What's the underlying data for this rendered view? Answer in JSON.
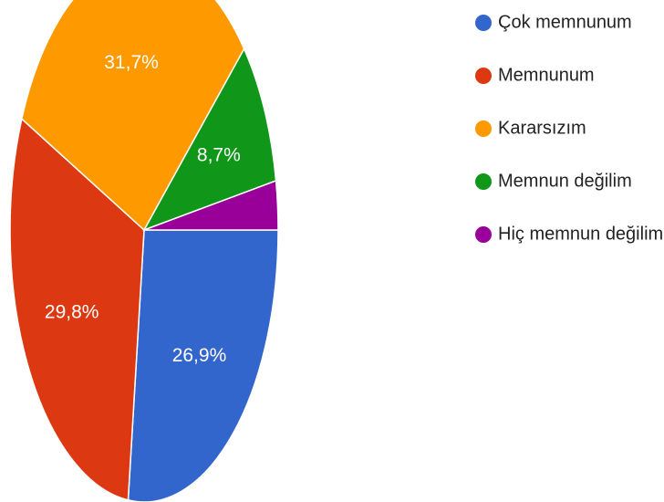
{
  "chart_data": {
    "type": "pie",
    "categories": [
      "Çok memnunum",
      "Memnunum",
      "Kararsızım",
      "Memnun değilim",
      "Hiç memnun değilim"
    ],
    "values": [
      26.9,
      29.8,
      31.7,
      8.7,
      2.9
    ],
    "value_labels": [
      "26,9%",
      "29,8%",
      "31,7%",
      "8,7%",
      null
    ],
    "colors": [
      "#3366cc",
      "#dc3912",
      "#ff9900",
      "#109618",
      "#990099"
    ],
    "legend": "right"
  }
}
